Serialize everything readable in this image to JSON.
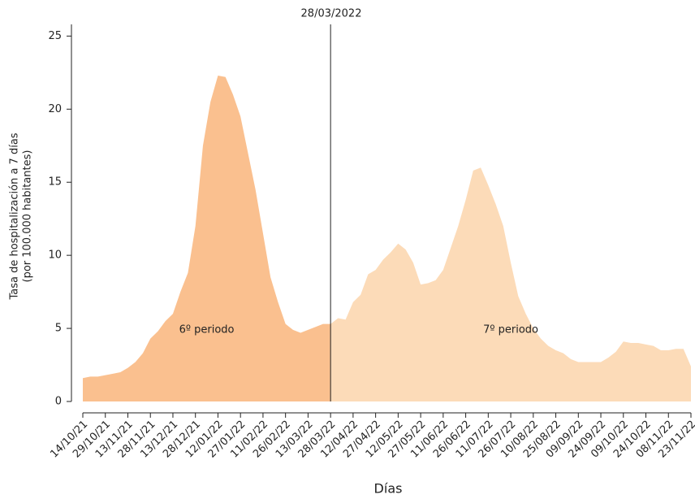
{
  "chart_data": {
    "type": "area",
    "x_label": "Días",
    "y_label": [
      "Tasa de hospitalización a 7 días",
      "(por 100.000 habitantes)"
    ],
    "annotation": "28/03/2022",
    "categories": [
      "14/10/21",
      null,
      null,
      "29/10/21",
      null,
      null,
      "13/11/21",
      null,
      null,
      "28/11/21",
      null,
      null,
      "13/12/21",
      null,
      null,
      "28/12/21",
      null,
      null,
      "12/01/22",
      null,
      null,
      "27/01/22",
      null,
      null,
      "11/02/22",
      null,
      null,
      "26/02/22",
      null,
      null,
      "13/03/22",
      null,
      null,
      "28/03/22",
      null,
      null,
      "12/04/22",
      null,
      null,
      "27/04/22",
      null,
      null,
      "12/05/22",
      null,
      null,
      "27/05/22",
      null,
      null,
      "11/06/22",
      null,
      null,
      "26/06/22",
      null,
      null,
      "11/07/22",
      null,
      null,
      "26/07/22",
      null,
      null,
      "10/08/22",
      null,
      null,
      "25/08/22",
      null,
      null,
      "09/09/22",
      null,
      null,
      "24/09/22",
      null,
      null,
      "09/10/22",
      null,
      null,
      "24/10/22",
      null,
      null,
      "08/11/22",
      null,
      null,
      "23/11/22"
    ],
    "series": [
      {
        "name": "6º periodo",
        "color": "#fac08f",
        "values": [
          1.6,
          1.7,
          1.7,
          1.8,
          1.9,
          2.0,
          2.3,
          2.7,
          3.3,
          4.3,
          4.8,
          5.5,
          6.0,
          7.5,
          8.8,
          12.0,
          17.5,
          20.5,
          22.3,
          22.2,
          21.0,
          19.5,
          17.0,
          14.5,
          11.5,
          8.5,
          6.8,
          5.3,
          4.9,
          4.7,
          4.9,
          5.1,
          5.3,
          5.3,
          null,
          null,
          null,
          null,
          null,
          null,
          null,
          null,
          null,
          null,
          null,
          null,
          null,
          null,
          null,
          null,
          null,
          null,
          null,
          null,
          null,
          null,
          null,
          null,
          null,
          null,
          null,
          null,
          null,
          null,
          null,
          null,
          null,
          null,
          null,
          null,
          null,
          null,
          null,
          null,
          null,
          null,
          null,
          null,
          null,
          null,
          null,
          null
        ]
      },
      {
        "name": "7º periodo",
        "color": "#fcdbb8",
        "values": [
          null,
          null,
          null,
          null,
          null,
          null,
          null,
          null,
          null,
          null,
          null,
          null,
          null,
          null,
          null,
          null,
          null,
          null,
          null,
          null,
          null,
          null,
          null,
          null,
          null,
          null,
          null,
          null,
          null,
          null,
          null,
          null,
          null,
          5.3,
          5.7,
          5.6,
          6.8,
          7.3,
          8.7,
          9.0,
          9.7,
          10.2,
          10.8,
          10.4,
          9.5,
          8.0,
          8.1,
          8.3,
          9.0,
          10.5,
          12.0,
          13.8,
          15.8,
          16.0,
          14.8,
          13.5,
          12.0,
          9.5,
          7.2,
          6.0,
          5.0,
          4.3,
          3.8,
          3.5,
          3.3,
          2.9,
          2.7,
          2.7,
          2.7,
          2.7,
          3.0,
          3.4,
          4.1,
          4.0,
          4.0,
          3.9,
          3.8,
          3.5,
          3.5,
          3.6,
          3.6,
          2.4
        ]
      }
    ],
    "ylim": [
      0,
      25.8
    ],
    "yticks": [
      0,
      5,
      10,
      15,
      20,
      25
    ],
    "grid": false
  }
}
